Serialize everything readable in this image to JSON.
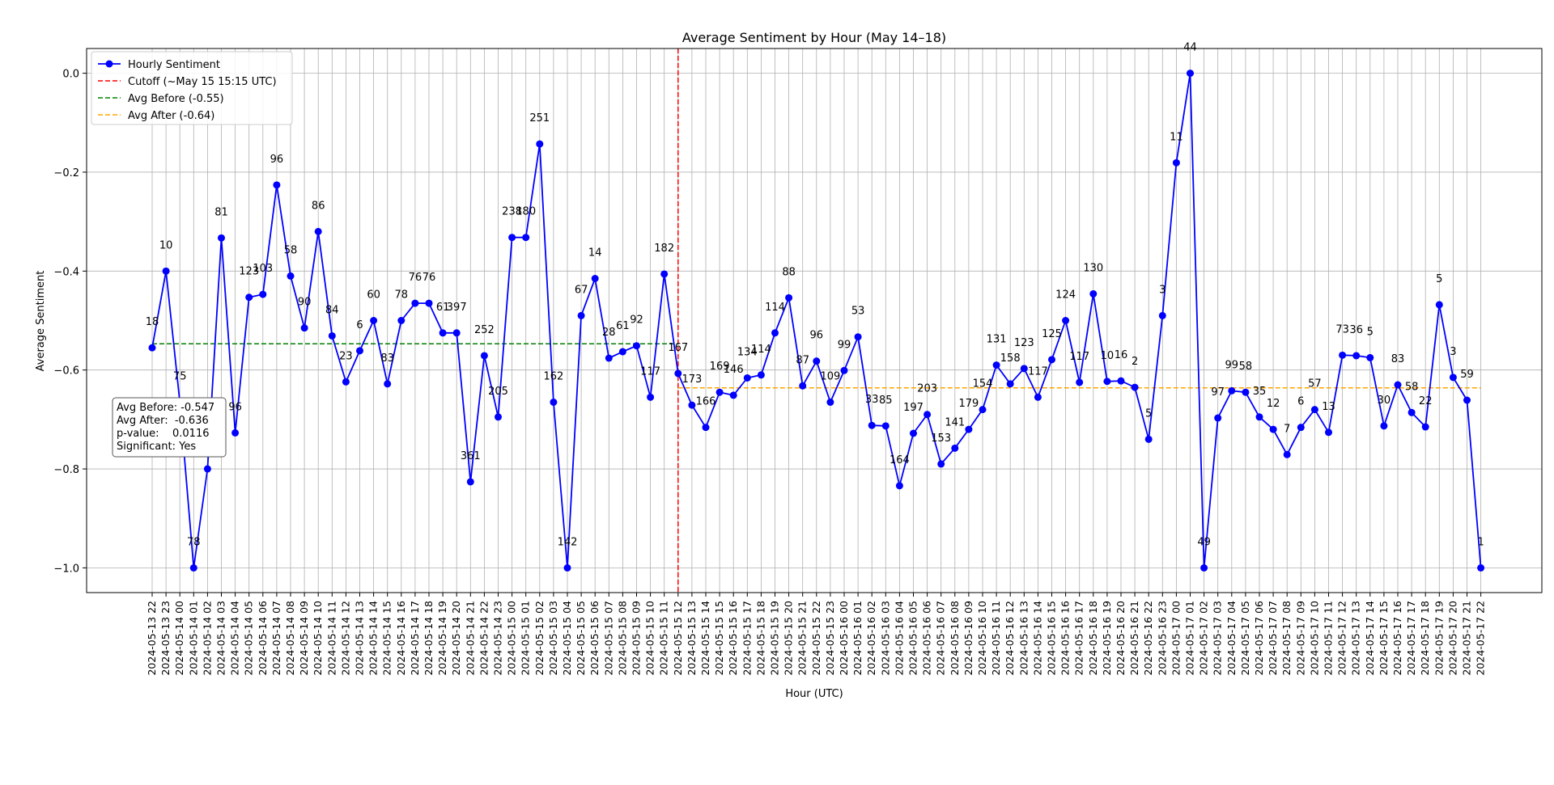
{
  "chart_data": {
    "type": "line",
    "title": "Average Sentiment by Hour (May 14–18)",
    "xlabel": "Hour (UTC)",
    "ylabel": "Average Sentiment",
    "ylim": [
      -1.05,
      0.05
    ],
    "yticks": [
      0.0,
      -0.2,
      -0.4,
      -0.6,
      -0.8,
      -1.0
    ],
    "ytick_labels": [
      "0.0",
      "−0.2",
      "−0.4",
      "−0.6",
      "−0.8",
      "−1.0"
    ],
    "grid": true,
    "legend_position": "top-left",
    "categories": [
      "2024-05-13 22",
      "2024-05-13 23",
      "2024-05-14 00",
      "2024-05-14 01",
      "2024-05-14 02",
      "2024-05-14 03",
      "2024-05-14 04",
      "2024-05-14 05",
      "2024-05-14 06",
      "2024-05-14 07",
      "2024-05-14 08",
      "2024-05-14 09",
      "2024-05-14 10",
      "2024-05-14 11",
      "2024-05-14 12",
      "2024-05-14 13",
      "2024-05-14 14",
      "2024-05-14 15",
      "2024-05-14 16",
      "2024-05-14 17",
      "2024-05-14 18",
      "2024-05-14 19",
      "2024-05-14 20",
      "2024-05-14 21",
      "2024-05-14 22",
      "2024-05-14 23",
      "2024-05-15 00",
      "2024-05-15 01",
      "2024-05-15 02",
      "2024-05-15 03",
      "2024-05-15 04",
      "2024-05-15 05",
      "2024-05-15 06",
      "2024-05-15 07",
      "2024-05-15 08",
      "2024-05-15 09",
      "2024-05-15 10",
      "2024-05-15 11",
      "2024-05-15 12",
      "2024-05-15 13",
      "2024-05-15 14",
      "2024-05-15 15",
      "2024-05-15 16",
      "2024-05-15 17",
      "2024-05-15 18",
      "2024-05-15 19",
      "2024-05-15 20",
      "2024-05-15 21",
      "2024-05-15 22",
      "2024-05-15 23",
      "2024-05-16 00",
      "2024-05-16 01",
      "2024-05-16 02",
      "2024-05-16 03",
      "2024-05-16 04",
      "2024-05-16 05",
      "2024-05-16 06",
      "2024-05-16 07",
      "2024-05-16 08",
      "2024-05-16 09",
      "2024-05-16 10",
      "2024-05-16 11",
      "2024-05-16 12",
      "2024-05-16 13",
      "2024-05-16 14",
      "2024-05-16 15",
      "2024-05-16 16",
      "2024-05-16 17",
      "2024-05-16 18",
      "2024-05-16 19",
      "2024-05-16 20",
      "2024-05-16 21",
      "2024-05-16 22",
      "2024-05-16 23",
      "2024-05-17 00",
      "2024-05-17 01",
      "2024-05-17 02",
      "2024-05-17 03",
      "2024-05-17 04",
      "2024-05-17 05",
      "2024-05-17 06",
      "2024-05-17 07",
      "2024-05-17 08",
      "2024-05-17 09",
      "2024-05-17 10",
      "2024-05-17 11",
      "2024-05-17 12",
      "2024-05-17 13",
      "2024-05-17 14",
      "2024-05-17 15",
      "2024-05-17 16",
      "2024-05-17 17",
      "2024-05-17 18",
      "2024-05-17 19",
      "2024-05-17 20",
      "2024-05-17 21",
      "2024-05-17 22"
    ],
    "series": [
      {
        "name": "Hourly Sentiment",
        "color": "#0000ff",
        "values": [
          -0.555,
          -0.4,
          -0.665,
          -1.0,
          -0.8,
          -0.333,
          -0.727,
          -0.453,
          -0.447,
          -0.226,
          -0.41,
          -0.515,
          -0.32,
          -0.531,
          -0.624,
          -0.561,
          -0.5,
          -0.628,
          -0.5,
          -0.465,
          -0.465,
          -0.525,
          -0.525,
          -0.826,
          -0.571,
          -0.695,
          -0.332,
          -0.332,
          -0.143,
          -0.665,
          -1.0,
          -0.49,
          -0.415,
          -0.576,
          -0.563,
          -0.551,
          -0.655,
          -0.406,
          -0.607,
          -0.671,
          -0.716,
          -0.645,
          -0.651,
          -0.616,
          -0.61,
          -0.525,
          -0.454,
          -0.632,
          -0.582,
          -0.665,
          -0.601,
          -0.533,
          -0.712,
          -0.713,
          -0.834,
          -0.728,
          -0.69,
          -0.79,
          -0.758,
          -0.72,
          -0.68,
          -0.59,
          -0.628,
          -0.597,
          -0.655,
          -0.579,
          -0.5,
          -0.625,
          -0.446,
          -0.623,
          -0.622,
          -0.635,
          -0.74,
          -0.49,
          -0.181,
          0.0,
          -1.0,
          -0.697,
          -0.642,
          -0.645,
          -0.695,
          -0.72,
          -0.771,
          -0.716,
          -0.68,
          -0.726,
          -0.57,
          -0.571,
          -0.575,
          -0.713,
          -0.63,
          -0.686,
          -0.715,
          -0.468,
          -0.615,
          -0.661,
          -1.0
        ],
        "point_labels": [
          "18",
          "10",
          "75",
          "78",
          "",
          "81",
          "96",
          "123",
          "103",
          "96",
          "58",
          "90",
          "86",
          "84",
          "23",
          "6",
          "60",
          "83",
          "78",
          "76",
          "76",
          "61",
          "397",
          "361",
          "252",
          "205",
          "238",
          "180",
          "251",
          "162",
          "142",
          "67",
          "14",
          "28",
          "61",
          "92",
          "117",
          "182",
          "167",
          "173",
          "166",
          "169",
          "146",
          "134",
          "114",
          "114",
          "88",
          "87",
          "96",
          "109",
          "99",
          "53",
          "33",
          "85",
          "164",
          "197",
          "203",
          "153",
          "141",
          "179",
          "154",
          "131",
          "158",
          "123",
          "117",
          "125",
          "124",
          "117",
          "130",
          "10",
          "16",
          "2",
          "5",
          "3",
          "11",
          "44",
          "49",
          "97",
          "99",
          "58",
          "35",
          "12",
          "7",
          "6",
          "57",
          "13",
          "73",
          "36",
          "5",
          "30",
          "83",
          "58",
          "22",
          "5",
          "3",
          "59",
          "1"
        ]
      }
    ],
    "reference_lines": [
      {
        "name": "Cutoff (~May 15 15:15 UTC)",
        "type": "vertical",
        "at_category": "2024-05-15 12",
        "color": "#ff0000"
      },
      {
        "name": "Avg Before (-0.55)",
        "type": "horizontal",
        "y": -0.547,
        "from_category": "2024-05-13 22",
        "to_category": "2024-05-15 12",
        "color": "#008000"
      },
      {
        "name": "Avg After (-0.64)",
        "type": "horizontal",
        "y": -0.636,
        "from_category": "2024-05-15 12",
        "to_category": "2024-05-17 22",
        "color": "#ffa500"
      }
    ],
    "legend": [
      {
        "label": "Hourly Sentiment",
        "color": "#0000ff",
        "style": "line-marker"
      },
      {
        "label": "Cutoff (~May 15 15:15 UTC)",
        "color": "#ff0000",
        "style": "dashed"
      },
      {
        "label": "Avg Before (-0.55)",
        "color": "#008000",
        "style": "dashed"
      },
      {
        "label": "Avg After (-0.64)",
        "color": "#ffa500",
        "style": "dashed"
      }
    ],
    "stats_box": [
      "Avg Before: -0.547",
      "Avg After:  -0.636",
      "p-value:    0.0116",
      "Significant: Yes"
    ]
  }
}
